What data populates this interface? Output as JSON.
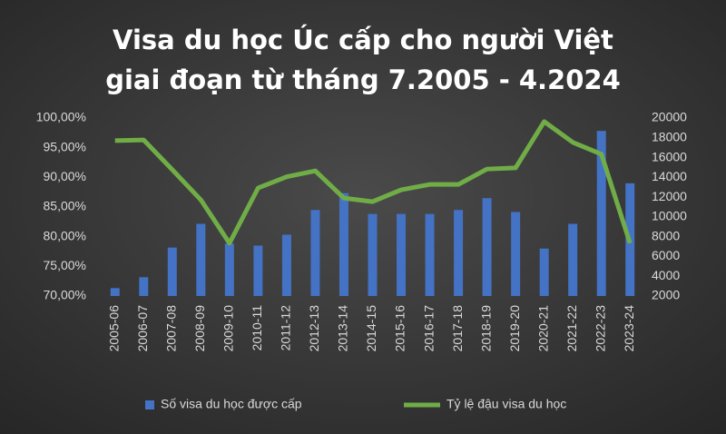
{
  "chart_data": {
    "type": "combo",
    "title": [
      "Visa du học Úc cấp cho người Việt",
      "giai đoạn từ tháng 7.2005 - 4.2024"
    ],
    "categories": [
      "2005-06",
      "2006-07",
      "2007-08",
      "2008-09",
      "2009-10",
      "2010-11",
      "2011-12",
      "2012-13",
      "2013-14",
      "2014-15",
      "2015-16",
      "2016-17",
      "2017-18",
      "2018-19",
      "2019-20",
      "2020-21",
      "2021-22",
      "2022-23",
      "2023-24"
    ],
    "series": [
      {
        "name": "Số visa du học được cấp",
        "type": "bar",
        "axis": "y2",
        "color": "#4472c4",
        "values": [
          2800,
          3900,
          6900,
          9300,
          7300,
          7100,
          8200,
          10700,
          12400,
          10300,
          10300,
          10300,
          10700,
          11900,
          10500,
          6800,
          9300,
          18700,
          13400
        ]
      },
      {
        "name": "Tỷ lệ đậu visa du học",
        "type": "line",
        "axis": "y",
        "color": "#70ad47",
        "values": [
          96.2,
          96.3,
          91.3,
          86.2,
          78.9,
          88.2,
          90.1,
          91.1,
          86.5,
          85.9,
          87.9,
          88.8,
          88.8,
          91.4,
          91.6,
          99.4,
          95.9,
          93.9,
          78.9
        ]
      }
    ],
    "ylim": [
      70,
      100
    ],
    "yticks": [
      {
        "value": 70,
        "label": "70,00%"
      },
      {
        "value": 75,
        "label": "75,00%"
      },
      {
        "value": 80,
        "label": "80,00%"
      },
      {
        "value": 85,
        "label": "85,00%"
      },
      {
        "value": 90,
        "label": "90,00%"
      },
      {
        "value": 95,
        "label": "95,00%"
      },
      {
        "value": 100,
        "label": "100,00%"
      }
    ],
    "y2lim": [
      2000,
      20000
    ],
    "y2ticks": [
      2000,
      4000,
      6000,
      8000,
      10000,
      12000,
      14000,
      16000,
      18000,
      20000
    ],
    "grid": false
  }
}
